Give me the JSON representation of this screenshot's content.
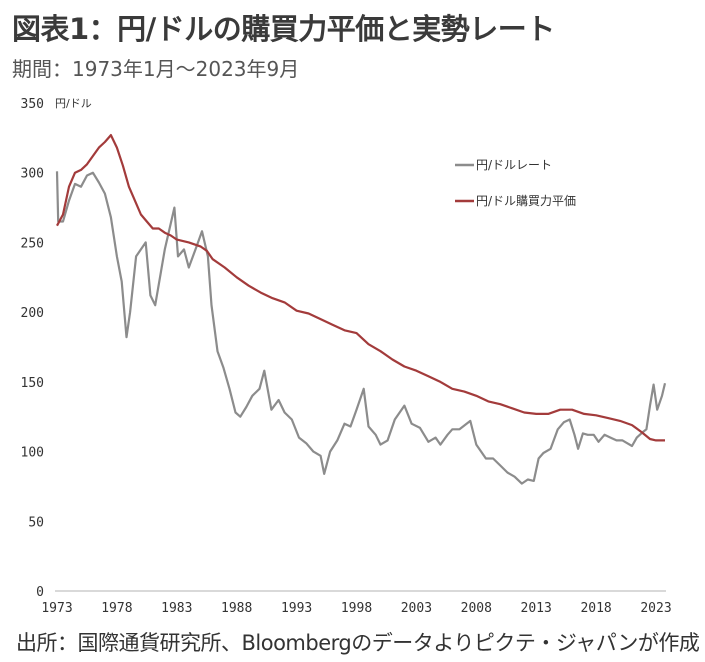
{
  "header": {
    "title": "図表1：円/ドルの購買力平価と実勢レート",
    "subtitle": "期間：1973年1月～2023年9月"
  },
  "footer": {
    "source": "出所：国際通貨研究所、Bloombergのデータよりピクテ・ジャパンが作成"
  },
  "colors": {
    "rate": "#8c8c8c",
    "ppp": "#a33b3b",
    "axis": "#d9d9d9"
  },
  "chart_data": {
    "type": "line",
    "title": "円/ドルの購買力平価と実勢レート",
    "xlabel": "",
    "ylabel": "円/ドル",
    "ylim": [
      0,
      350
    ],
    "xlim": [
      1973,
      2023.75
    ],
    "grid": false,
    "legend_position": "top-right",
    "x_ticks": [
      "1973",
      "1978",
      "1983",
      "1988",
      "1993",
      "1998",
      "2003",
      "2008",
      "2013",
      "2018",
      "2023"
    ],
    "y_ticks": [
      "0",
      "50",
      "100",
      "150",
      "200",
      "250",
      "300",
      "350"
    ],
    "series": [
      {
        "name": "円/ドルレート",
        "color": "#8c8c8c",
        "points": [
          [
            1973.0,
            301
          ],
          [
            1973.1,
            265
          ],
          [
            1973.5,
            265
          ],
          [
            1974.0,
            280
          ],
          [
            1974.5,
            292
          ],
          [
            1975.0,
            290
          ],
          [
            1975.5,
            298
          ],
          [
            1976.0,
            300
          ],
          [
            1976.5,
            293
          ],
          [
            1977.0,
            285
          ],
          [
            1977.5,
            268
          ],
          [
            1978.0,
            240
          ],
          [
            1978.4,
            222
          ],
          [
            1978.8,
            182
          ],
          [
            1979.1,
            200
          ],
          [
            1979.6,
            240
          ],
          [
            1980.0,
            245
          ],
          [
            1980.4,
            250
          ],
          [
            1980.8,
            212
          ],
          [
            1981.2,
            205
          ],
          [
            1981.7,
            230
          ],
          [
            1982.0,
            245
          ],
          [
            1982.8,
            275
          ],
          [
            1983.1,
            240
          ],
          [
            1983.6,
            245
          ],
          [
            1984.0,
            232
          ],
          [
            1984.6,
            246
          ],
          [
            1985.1,
            258
          ],
          [
            1985.6,
            240
          ],
          [
            1985.9,
            205
          ],
          [
            1986.4,
            172
          ],
          [
            1986.9,
            160
          ],
          [
            1987.4,
            145
          ],
          [
            1987.9,
            128
          ],
          [
            1988.3,
            125
          ],
          [
            1988.8,
            132
          ],
          [
            1989.3,
            140
          ],
          [
            1989.9,
            145
          ],
          [
            1990.3,
            158
          ],
          [
            1990.9,
            130
          ],
          [
            1991.5,
            137
          ],
          [
            1992.0,
            128
          ],
          [
            1992.6,
            123
          ],
          [
            1993.2,
            110
          ],
          [
            1993.8,
            106
          ],
          [
            1994.4,
            100
          ],
          [
            1995.0,
            97
          ],
          [
            1995.3,
            84
          ],
          [
            1995.8,
            100
          ],
          [
            1996.4,
            108
          ],
          [
            1997.0,
            120
          ],
          [
            1997.5,
            118
          ],
          [
            1998.0,
            130
          ],
          [
            1998.6,
            145
          ],
          [
            1999.0,
            118
          ],
          [
            1999.6,
            112
          ],
          [
            2000.0,
            105
          ],
          [
            2000.6,
            108
          ],
          [
            2001.2,
            123
          ],
          [
            2002.0,
            133
          ],
          [
            2002.6,
            120
          ],
          [
            2003.3,
            117
          ],
          [
            2004.0,
            107
          ],
          [
            2004.6,
            110
          ],
          [
            2005.0,
            105
          ],
          [
            2005.6,
            112
          ],
          [
            2006.0,
            116
          ],
          [
            2006.6,
            116
          ],
          [
            2007.5,
            122
          ],
          [
            2008.0,
            105
          ],
          [
            2008.8,
            95
          ],
          [
            2009.4,
            95
          ],
          [
            2010.0,
            90
          ],
          [
            2010.6,
            85
          ],
          [
            2011.2,
            82
          ],
          [
            2011.8,
            77
          ],
          [
            2012.3,
            80
          ],
          [
            2012.8,
            79
          ],
          [
            2013.2,
            95
          ],
          [
            2013.6,
            99
          ],
          [
            2014.2,
            102
          ],
          [
            2014.8,
            116
          ],
          [
            2015.3,
            121
          ],
          [
            2015.8,
            123
          ],
          [
            2016.2,
            112
          ],
          [
            2016.5,
            102
          ],
          [
            2016.9,
            113
          ],
          [
            2017.3,
            112
          ],
          [
            2017.8,
            112
          ],
          [
            2018.2,
            107
          ],
          [
            2018.7,
            112
          ],
          [
            2019.2,
            110
          ],
          [
            2019.7,
            108
          ],
          [
            2020.2,
            108
          ],
          [
            2020.6,
            106
          ],
          [
            2021.0,
            104
          ],
          [
            2021.4,
            110
          ],
          [
            2021.9,
            114
          ],
          [
            2022.2,
            116
          ],
          [
            2022.5,
            133
          ],
          [
            2022.8,
            148
          ],
          [
            2023.1,
            130
          ],
          [
            2023.5,
            140
          ],
          [
            2023.75,
            149
          ]
        ]
      },
      {
        "name": "円/ドル購買力平価",
        "color": "#a33b3b",
        "points": [
          [
            1973.0,
            262
          ],
          [
            1973.5,
            270
          ],
          [
            1974.0,
            290
          ],
          [
            1974.5,
            300
          ],
          [
            1975.0,
            302
          ],
          [
            1975.5,
            306
          ],
          [
            1976.0,
            312
          ],
          [
            1976.5,
            318
          ],
          [
            1977.0,
            322
          ],
          [
            1977.5,
            327
          ],
          [
            1978.0,
            318
          ],
          [
            1978.5,
            305
          ],
          [
            1979.0,
            290
          ],
          [
            1979.5,
            280
          ],
          [
            1980.0,
            270
          ],
          [
            1980.5,
            265
          ],
          [
            1981.0,
            260
          ],
          [
            1981.5,
            260
          ],
          [
            1982.0,
            257
          ],
          [
            1982.5,
            255
          ],
          [
            1983.0,
            252
          ],
          [
            1984.0,
            250
          ],
          [
            1985.0,
            247
          ],
          [
            1985.5,
            244
          ],
          [
            1986.0,
            238
          ],
          [
            1987.0,
            232
          ],
          [
            1988.0,
            225
          ],
          [
            1989.0,
            219
          ],
          [
            1990.0,
            214
          ],
          [
            1991.0,
            210
          ],
          [
            1992.0,
            207
          ],
          [
            1993.0,
            201
          ],
          [
            1994.0,
            199
          ],
          [
            1995.0,
            195
          ],
          [
            1996.0,
            191
          ],
          [
            1997.0,
            187
          ],
          [
            1998.0,
            185
          ],
          [
            1999.0,
            177
          ],
          [
            2000.0,
            172
          ],
          [
            2001.0,
            166
          ],
          [
            2002.0,
            161
          ],
          [
            2003.0,
            158
          ],
          [
            2004.0,
            154
          ],
          [
            2005.0,
            150
          ],
          [
            2006.0,
            145
          ],
          [
            2007.0,
            143
          ],
          [
            2008.0,
            140
          ],
          [
            2009.0,
            136
          ],
          [
            2010.0,
            134
          ],
          [
            2011.0,
            131
          ],
          [
            2012.0,
            128
          ],
          [
            2013.0,
            127
          ],
          [
            2014.0,
            127
          ],
          [
            2015.0,
            130
          ],
          [
            2016.0,
            130
          ],
          [
            2017.0,
            127
          ],
          [
            2018.0,
            126
          ],
          [
            2019.0,
            124
          ],
          [
            2020.0,
            122
          ],
          [
            2021.0,
            119
          ],
          [
            2021.8,
            114
          ],
          [
            2022.5,
            109
          ],
          [
            2023.0,
            108
          ],
          [
            2023.75,
            108
          ]
        ]
      }
    ]
  },
  "legend": {
    "items": [
      {
        "label": "円/ドルレート",
        "color": "#8c8c8c"
      },
      {
        "label": "円/ドル購買力平価",
        "color": "#a33b3b"
      }
    ]
  },
  "axes": {
    "y_unit": "円/ドル"
  }
}
